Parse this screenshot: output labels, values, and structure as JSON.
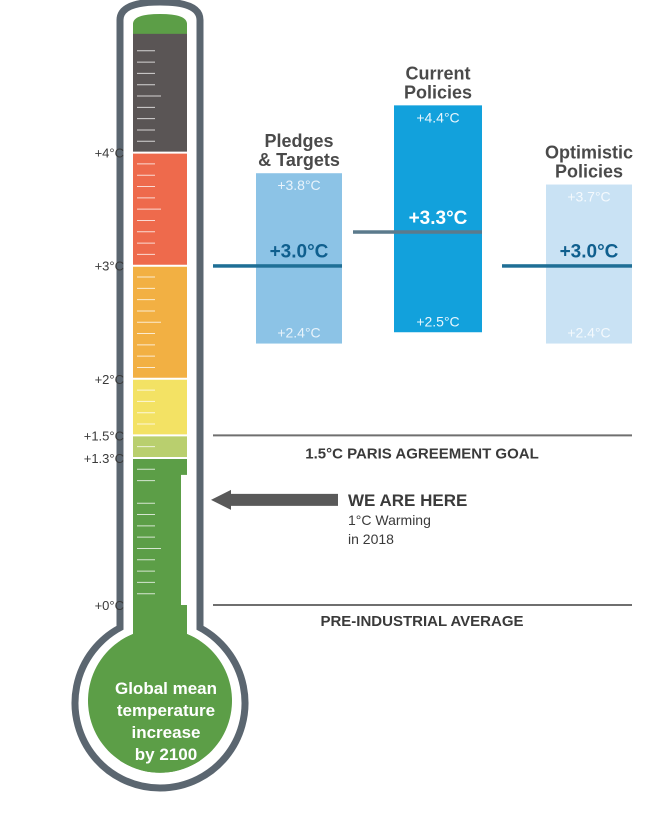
{
  "thermometer": {
    "bulb_text": [
      "Global mean",
      "temperature",
      "increase",
      "by 2100"
    ],
    "zones": [
      {
        "name": "zone-dark",
        "from": 4.0,
        "to": 5.05,
        "color": "#5a5555"
      },
      {
        "name": "zone-red",
        "from": 3.0,
        "to": 4.0,
        "color": "#ee6a4c"
      },
      {
        "name": "zone-orange",
        "from": 2.0,
        "to": 3.0,
        "color": "#f2b043"
      },
      {
        "name": "zone-yellow",
        "from": 1.5,
        "to": 2.0,
        "color": "#f3e264"
      },
      {
        "name": "zone-lightgreen",
        "from": 1.3,
        "to": 1.5,
        "color": "#b9cf6e"
      },
      {
        "name": "zone-green",
        "from": -0.3,
        "to": 1.3,
        "color": "#5c9e47"
      }
    ],
    "ticks": [
      {
        "label": "+4°C",
        "value": 4.0
      },
      {
        "label": "+3°C",
        "value": 3.0
      },
      {
        "label": "+2°C",
        "value": 2.0
      },
      {
        "label": "+1.5°C",
        "value": 1.5
      },
      {
        "label": "+1.3°C",
        "value": 1.3
      },
      {
        "label": "+0°C",
        "value": 0.0
      }
    ],
    "current_level": 1.0
  },
  "scenarios": [
    {
      "title": [
        "Pledges",
        "& Targets"
      ],
      "low": 2.4,
      "mid": 3.0,
      "high": 3.8,
      "low_label": "+2.4°C",
      "mid_label": "+3.0°C",
      "high_label": "+3.8°C",
      "color": "#8cc3e6",
      "text_color": "#0f5f8e",
      "range_text_color": "#e8f3fb"
    },
    {
      "title": [
        "Current",
        "Policies"
      ],
      "low": 2.5,
      "mid": 3.3,
      "high": 4.4,
      "low_label": "+2.5°C",
      "mid_label": "+3.3°C",
      "high_label": "+4.4°C",
      "color": "#12a1dc",
      "text_color": "#ffffff",
      "range_text_color": "#e8f6fd"
    },
    {
      "title": [
        "Optimistic",
        "Policies"
      ],
      "low": 2.4,
      "mid": 3.0,
      "high": 3.7,
      "low_label": "+2.4°C",
      "mid_label": "+3.0°C",
      "high_label": "+3.7°C",
      "color": "#c9e2f4",
      "text_color": "#0f5f8e",
      "range_text_color": "#f4f9fd"
    }
  ],
  "lines": {
    "paris": {
      "value": 1.5,
      "label": "1.5°C PARIS AGREEMENT GOAL"
    },
    "preindustrial": {
      "value": 0.0,
      "label": "PRE-INDUSTRIAL AVERAGE"
    }
  },
  "marker": {
    "title": "WE ARE HERE",
    "subtitle": [
      "1°C Warming",
      "in 2018"
    ]
  }
}
